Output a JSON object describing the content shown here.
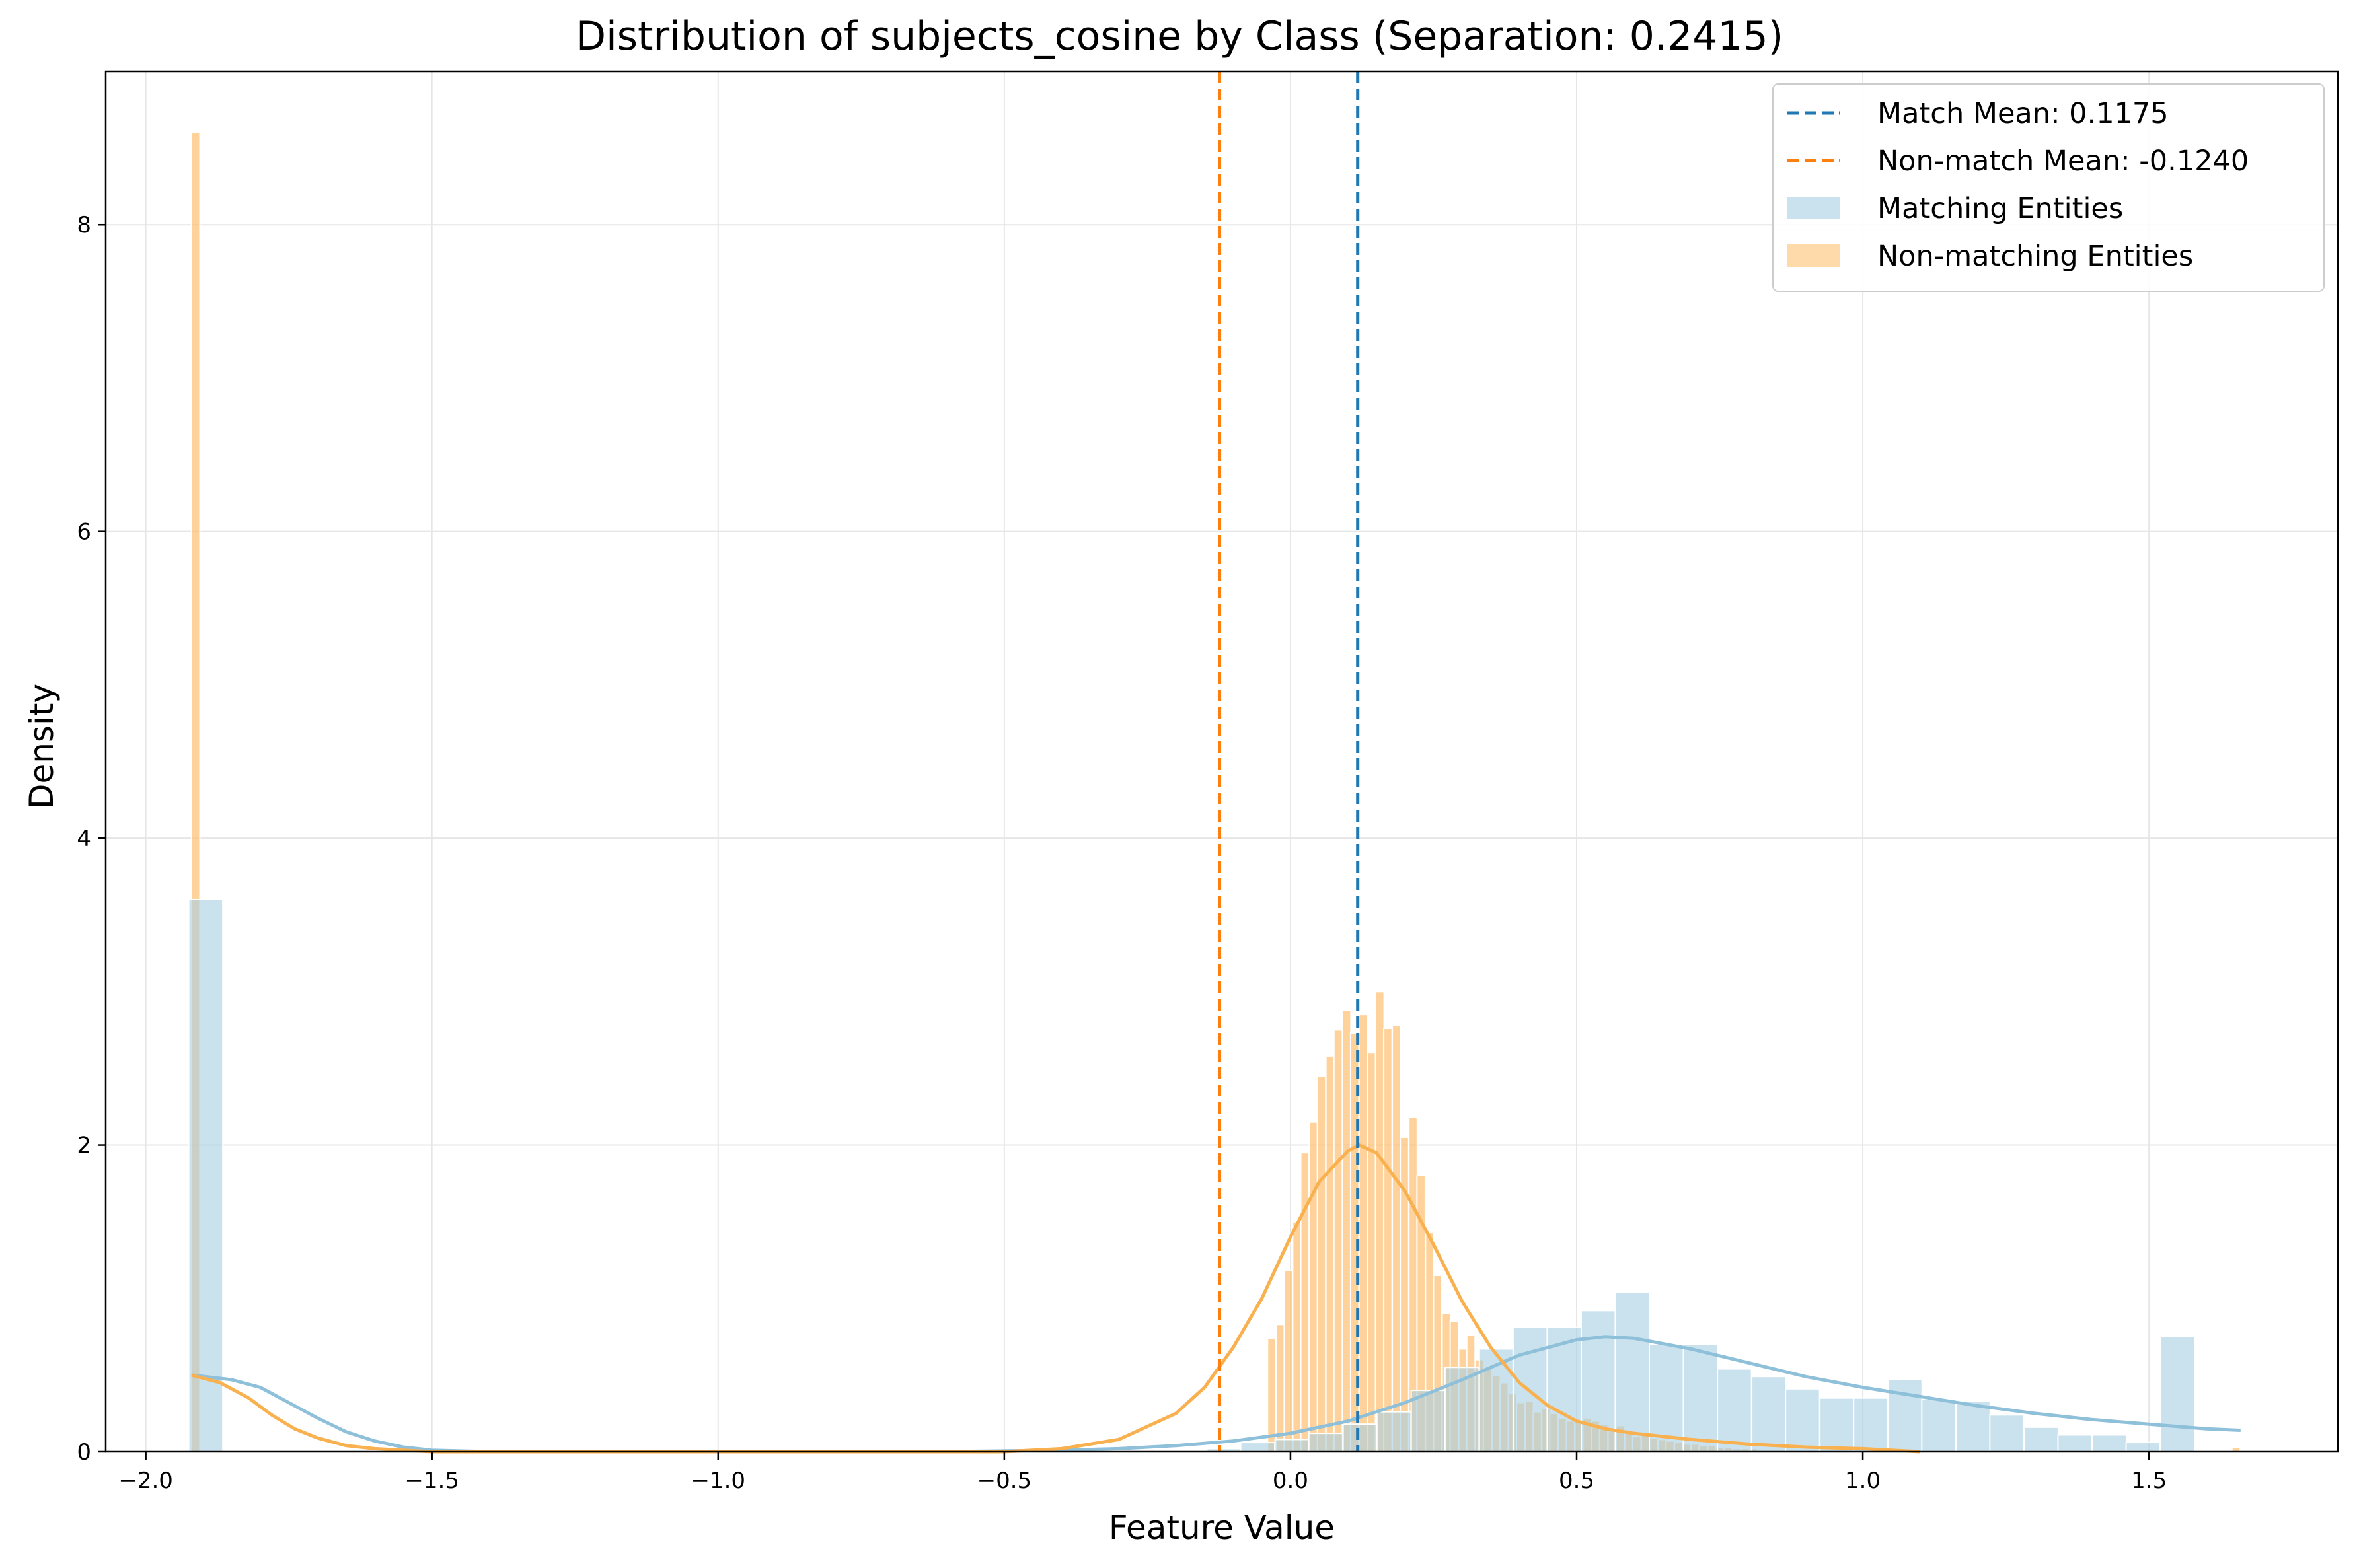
{
  "chart_data": {
    "type": "bar",
    "title": "Distribution of subjects_cosine by Class (Separation: 0.2415)",
    "xlabel": "Feature Value",
    "ylabel": "Density",
    "xlim": [
      -2.07,
      1.83
    ],
    "ylim": [
      0,
      9.0
    ],
    "xticks": [
      -2.0,
      -1.5,
      -1.0,
      -0.5,
      0.0,
      0.5,
      1.0,
      1.5
    ],
    "xtick_labels": [
      "−2.0",
      "−1.5",
      "−1.0",
      "−0.5",
      "0.0",
      "0.5",
      "1.0",
      "1.5"
    ],
    "yticks": [
      0,
      2,
      4,
      6,
      8
    ],
    "ytick_labels": [
      "0",
      "2",
      "4",
      "6",
      "8"
    ],
    "grid": true,
    "legend_position": "top-right",
    "colors": {
      "match_mean_line": "#1f77b4",
      "nonmatch_mean_line": "#ff7f0e",
      "matching_hist": "#a6cee3",
      "nonmatching_hist": "#fdbf6f",
      "matching_kde": "#8fc0da",
      "nonmatching_kde": "#f9b04f"
    },
    "mean_lines": [
      {
        "name": "Match Mean: 0.1175",
        "x": 0.1175,
        "color": "#1f77b4"
      },
      {
        "name": "Non-match Mean: -0.1240",
        "x": -0.124,
        "color": "#ff7f0e"
      }
    ],
    "series": [
      {
        "name": "Matching Entities",
        "color": "#a6cee3",
        "bin_width": 0.0595,
        "bins": [
          {
            "x": -1.925,
            "y": 3.6
          },
          {
            "x": -0.146,
            "y": 0.02
          },
          {
            "x": -0.087,
            "y": 0.06
          },
          {
            "x": -0.027,
            "y": 0.08
          },
          {
            "x": 0.032,
            "y": 0.12
          },
          {
            "x": 0.092,
            "y": 0.18
          },
          {
            "x": 0.151,
            "y": 0.26
          },
          {
            "x": 0.211,
            "y": 0.4
          },
          {
            "x": 0.27,
            "y": 0.55
          },
          {
            "x": 0.33,
            "y": 0.67
          },
          {
            "x": 0.389,
            "y": 0.81
          },
          {
            "x": 0.449,
            "y": 0.81
          },
          {
            "x": 0.508,
            "y": 0.92
          },
          {
            "x": 0.568,
            "y": 1.04
          },
          {
            "x": 0.627,
            "y": 0.7
          },
          {
            "x": 0.687,
            "y": 0.7
          },
          {
            "x": 0.746,
            "y": 0.54
          },
          {
            "x": 0.806,
            "y": 0.49
          },
          {
            "x": 0.865,
            "y": 0.41
          },
          {
            "x": 0.925,
            "y": 0.35
          },
          {
            "x": 0.984,
            "y": 0.35
          },
          {
            "x": 1.044,
            "y": 0.47
          },
          {
            "x": 1.103,
            "y": 0.34
          },
          {
            "x": 1.163,
            "y": 0.33
          },
          {
            "x": 1.222,
            "y": 0.24
          },
          {
            "x": 1.282,
            "y": 0.16
          },
          {
            "x": 1.341,
            "y": 0.11
          },
          {
            "x": 1.401,
            "y": 0.11
          },
          {
            "x": 1.46,
            "y": 0.06
          },
          {
            "x": 1.52,
            "y": 0.75
          }
        ]
      },
      {
        "name": "Non-matching Entities",
        "color": "#fdbf6f",
        "bin_width": 0.0145,
        "bins": [
          {
            "x": -1.92,
            "y": 8.6
          },
          {
            "x": -0.04,
            "y": 0.74
          },
          {
            "x": -0.025,
            "y": 0.83
          },
          {
            "x": -0.011,
            "y": 1.18
          },
          {
            "x": 0.004,
            "y": 1.5
          },
          {
            "x": 0.018,
            "y": 1.95
          },
          {
            "x": 0.033,
            "y": 2.15
          },
          {
            "x": 0.047,
            "y": 2.45
          },
          {
            "x": 0.062,
            "y": 2.58
          },
          {
            "x": 0.076,
            "y": 2.75
          },
          {
            "x": 0.091,
            "y": 2.88
          },
          {
            "x": 0.105,
            "y": 2.73
          },
          {
            "x": 0.12,
            "y": 2.85
          },
          {
            "x": 0.134,
            "y": 2.6
          },
          {
            "x": 0.149,
            "y": 3.0
          },
          {
            "x": 0.163,
            "y": 2.76
          },
          {
            "x": 0.178,
            "y": 2.78
          },
          {
            "x": 0.192,
            "y": 2.05
          },
          {
            "x": 0.207,
            "y": 2.18
          },
          {
            "x": 0.221,
            "y": 1.8
          },
          {
            "x": 0.236,
            "y": 1.43
          },
          {
            "x": 0.25,
            "y": 1.15
          },
          {
            "x": 0.265,
            "y": 0.9
          },
          {
            "x": 0.279,
            "y": 0.85
          },
          {
            "x": 0.294,
            "y": 0.67
          },
          {
            "x": 0.308,
            "y": 0.76
          },
          {
            "x": 0.323,
            "y": 0.6
          },
          {
            "x": 0.337,
            "y": 0.55
          },
          {
            "x": 0.352,
            "y": 0.5
          },
          {
            "x": 0.366,
            "y": 0.45
          },
          {
            "x": 0.381,
            "y": 0.38
          },
          {
            "x": 0.395,
            "y": 0.32
          },
          {
            "x": 0.41,
            "y": 0.33
          },
          {
            "x": 0.424,
            "y": 0.26
          },
          {
            "x": 0.439,
            "y": 0.28
          },
          {
            "x": 0.453,
            "y": 0.25
          },
          {
            "x": 0.468,
            "y": 0.22
          },
          {
            "x": 0.482,
            "y": 0.2
          },
          {
            "x": 0.497,
            "y": 0.2
          },
          {
            "x": 0.511,
            "y": 0.22
          },
          {
            "x": 0.526,
            "y": 0.2
          },
          {
            "x": 0.54,
            "y": 0.18
          },
          {
            "x": 0.555,
            "y": 0.15
          },
          {
            "x": 0.569,
            "y": 0.17
          },
          {
            "x": 0.584,
            "y": 0.13
          },
          {
            "x": 0.598,
            "y": 0.1
          },
          {
            "x": 0.613,
            "y": 0.11
          },
          {
            "x": 0.627,
            "y": 0.09
          },
          {
            "x": 0.642,
            "y": 0.08
          },
          {
            "x": 0.656,
            "y": 0.07
          },
          {
            "x": 0.671,
            "y": 0.06
          },
          {
            "x": 0.685,
            "y": 0.05
          },
          {
            "x": 0.7,
            "y": 0.05
          },
          {
            "x": 0.714,
            "y": 0.04
          },
          {
            "x": 0.729,
            "y": 0.04
          },
          {
            "x": 0.743,
            "y": 0.03
          },
          {
            "x": 0.758,
            "y": 0.03
          },
          {
            "x": 0.772,
            "y": 0.02
          },
          {
            "x": 0.787,
            "y": 0.02
          },
          {
            "x": 0.801,
            "y": 0.02
          },
          {
            "x": 1.645,
            "y": 0.03
          }
        ]
      }
    ],
    "kde": [
      {
        "name": "Matching Entities KDE",
        "color": "#8fc0da",
        "x": [
          -1.92,
          -1.85,
          -1.8,
          -1.75,
          -1.7,
          -1.65,
          -1.6,
          -1.55,
          -1.5,
          -1.4,
          -1.2,
          -1.0,
          -0.6,
          -0.4,
          -0.3,
          -0.2,
          -0.1,
          0.0,
          0.1,
          0.2,
          0.3,
          0.4,
          0.5,
          0.55,
          0.6,
          0.7,
          0.8,
          0.9,
          1.0,
          1.1,
          1.2,
          1.3,
          1.4,
          1.5,
          1.6,
          1.66
        ],
        "y": [
          0.5,
          0.47,
          0.42,
          0.32,
          0.22,
          0.13,
          0.07,
          0.03,
          0.01,
          0.0,
          0.0,
          0.0,
          0.0,
          0.01,
          0.02,
          0.04,
          0.07,
          0.12,
          0.2,
          0.32,
          0.47,
          0.63,
          0.73,
          0.75,
          0.74,
          0.67,
          0.58,
          0.49,
          0.42,
          0.36,
          0.3,
          0.25,
          0.21,
          0.18,
          0.15,
          0.14
        ]
      },
      {
        "name": "Non-matching Entities KDE",
        "color": "#f9b04f",
        "x": [
          -1.92,
          -1.87,
          -1.82,
          -1.78,
          -1.74,
          -1.7,
          -1.65,
          -1.6,
          -1.55,
          -1.5,
          -1.0,
          -0.5,
          -0.4,
          -0.3,
          -0.2,
          -0.15,
          -0.1,
          -0.05,
          0.0,
          0.05,
          0.1,
          0.12,
          0.15,
          0.2,
          0.25,
          0.3,
          0.35,
          0.4,
          0.45,
          0.5,
          0.55,
          0.6,
          0.7,
          0.8,
          0.9,
          1.0,
          1.1
        ],
        "y": [
          0.5,
          0.45,
          0.35,
          0.24,
          0.15,
          0.09,
          0.04,
          0.02,
          0.01,
          0.0,
          0.0,
          0.0,
          0.02,
          0.08,
          0.25,
          0.42,
          0.68,
          1.0,
          1.4,
          1.76,
          1.96,
          2.0,
          1.95,
          1.7,
          1.35,
          0.98,
          0.68,
          0.45,
          0.3,
          0.2,
          0.15,
          0.12,
          0.08,
          0.05,
          0.03,
          0.02,
          0.0
        ]
      }
    ],
    "legend": [
      {
        "label": "Match Mean: 0.1175",
        "kind": "dashed-line",
        "color": "#1f77b4"
      },
      {
        "label": "Non-match Mean: -0.1240",
        "kind": "dashed-line",
        "color": "#ff7f0e"
      },
      {
        "label": "Matching Entities",
        "kind": "patch",
        "color": "#a6cee3"
      },
      {
        "label": "Non-matching Entities",
        "kind": "patch",
        "color": "#fdbf6f"
      }
    ]
  }
}
